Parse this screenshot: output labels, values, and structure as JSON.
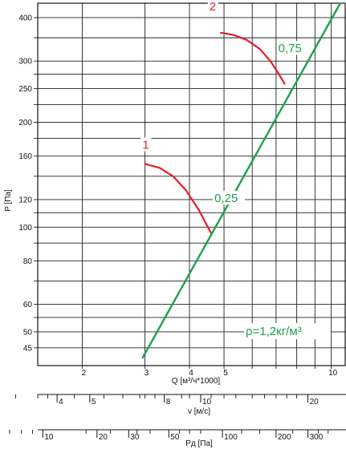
{
  "chart_data": {
    "type": "line",
    "x_axis": {
      "label": "Q [м³/ч*1000]",
      "scale": "log",
      "range": [
        1.5,
        11
      ],
      "tick_labels": [
        "2",
        "3",
        "4",
        "5",
        "10"
      ],
      "minor_ticks": [
        2,
        3,
        4,
        5,
        6,
        7,
        8,
        9,
        10
      ]
    },
    "y_axis": {
      "label": "P [Па]",
      "scale": "log",
      "range": [
        40,
        440
      ],
      "tick_labels": [
        "45",
        "50",
        "60",
        "80",
        "100",
        "120",
        "160",
        "200",
        "250",
        "300",
        "400"
      ],
      "grid_values": [
        45,
        50,
        55,
        60,
        70,
        80,
        90,
        100,
        110,
        120,
        140,
        160,
        180,
        200,
        225,
        250,
        275,
        300,
        350,
        400
      ]
    },
    "velocity_axis": {
      "label": "v [м/с]",
      "tick_labels": [
        "4",
        "5",
        "8",
        "10",
        "20"
      ],
      "tick_values_q": [
        1.7,
        2.1,
        3.4,
        4.3,
        8.6
      ],
      "minor_values_q": [
        1.3,
        1.5,
        1.6,
        1.9,
        2.3,
        2.6,
        2.9,
        3.0,
        3.2,
        3.8,
        4.0,
        4.3,
        4.6,
        5.0,
        5.4,
        6.0,
        6.5,
        7.0,
        7.5,
        8.0,
        8.6
      ]
    },
    "dynamic_pressure_axis": {
      "label": "Pд [Па]",
      "tick_labels": [
        "10",
        "20",
        "30",
        "50",
        "100",
        "200",
        "300"
      ],
      "tick_values_q": [
        1.55,
        2.2,
        2.7,
        3.5,
        4.95,
        7.0,
        8.6
      ],
      "minor_values_q": [
        1.05,
        1.15,
        1.25,
        1.35,
        1.45,
        2.05,
        2.4,
        2.85,
        3.1,
        3.75,
        4.0,
        4.3,
        5.6,
        6.3,
        7.8,
        9.2,
        9.8
      ]
    },
    "series": [
      {
        "name": "1",
        "color": "#e41e26",
        "points": [
          [
            3.0,
            152
          ],
          [
            3.3,
            148
          ],
          [
            3.6,
            140
          ],
          [
            3.9,
            128
          ],
          [
            4.25,
            112
          ],
          [
            4.6,
            96
          ]
        ]
      },
      {
        "name": "2",
        "color": "#e41e26",
        "points": [
          [
            4.9,
            362
          ],
          [
            5.3,
            357
          ],
          [
            5.8,
            345
          ],
          [
            6.3,
            325
          ],
          [
            6.75,
            300
          ],
          [
            7.1,
            277
          ],
          [
            7.4,
            258
          ]
        ]
      }
    ],
    "system_line": {
      "label": "ρ=1,2кг/м³",
      "color": "#1ea04a",
      "points": [
        [
          2.95,
          42
        ],
        [
          10.6,
          440
        ]
      ]
    },
    "annotations": [
      {
        "text": "1",
        "color": "#e41e26",
        "at": [
          2.95,
          168
        ]
      },
      {
        "text": "2",
        "color": "#e41e26",
        "at": [
          4.55,
          420
        ]
      },
      {
        "text": "0,25",
        "color": "#1ea04a",
        "at": [
          4.7,
          118
        ]
      },
      {
        "text": "0,75",
        "color": "#1ea04a",
        "at": [
          7.1,
          318
        ]
      }
    ]
  }
}
